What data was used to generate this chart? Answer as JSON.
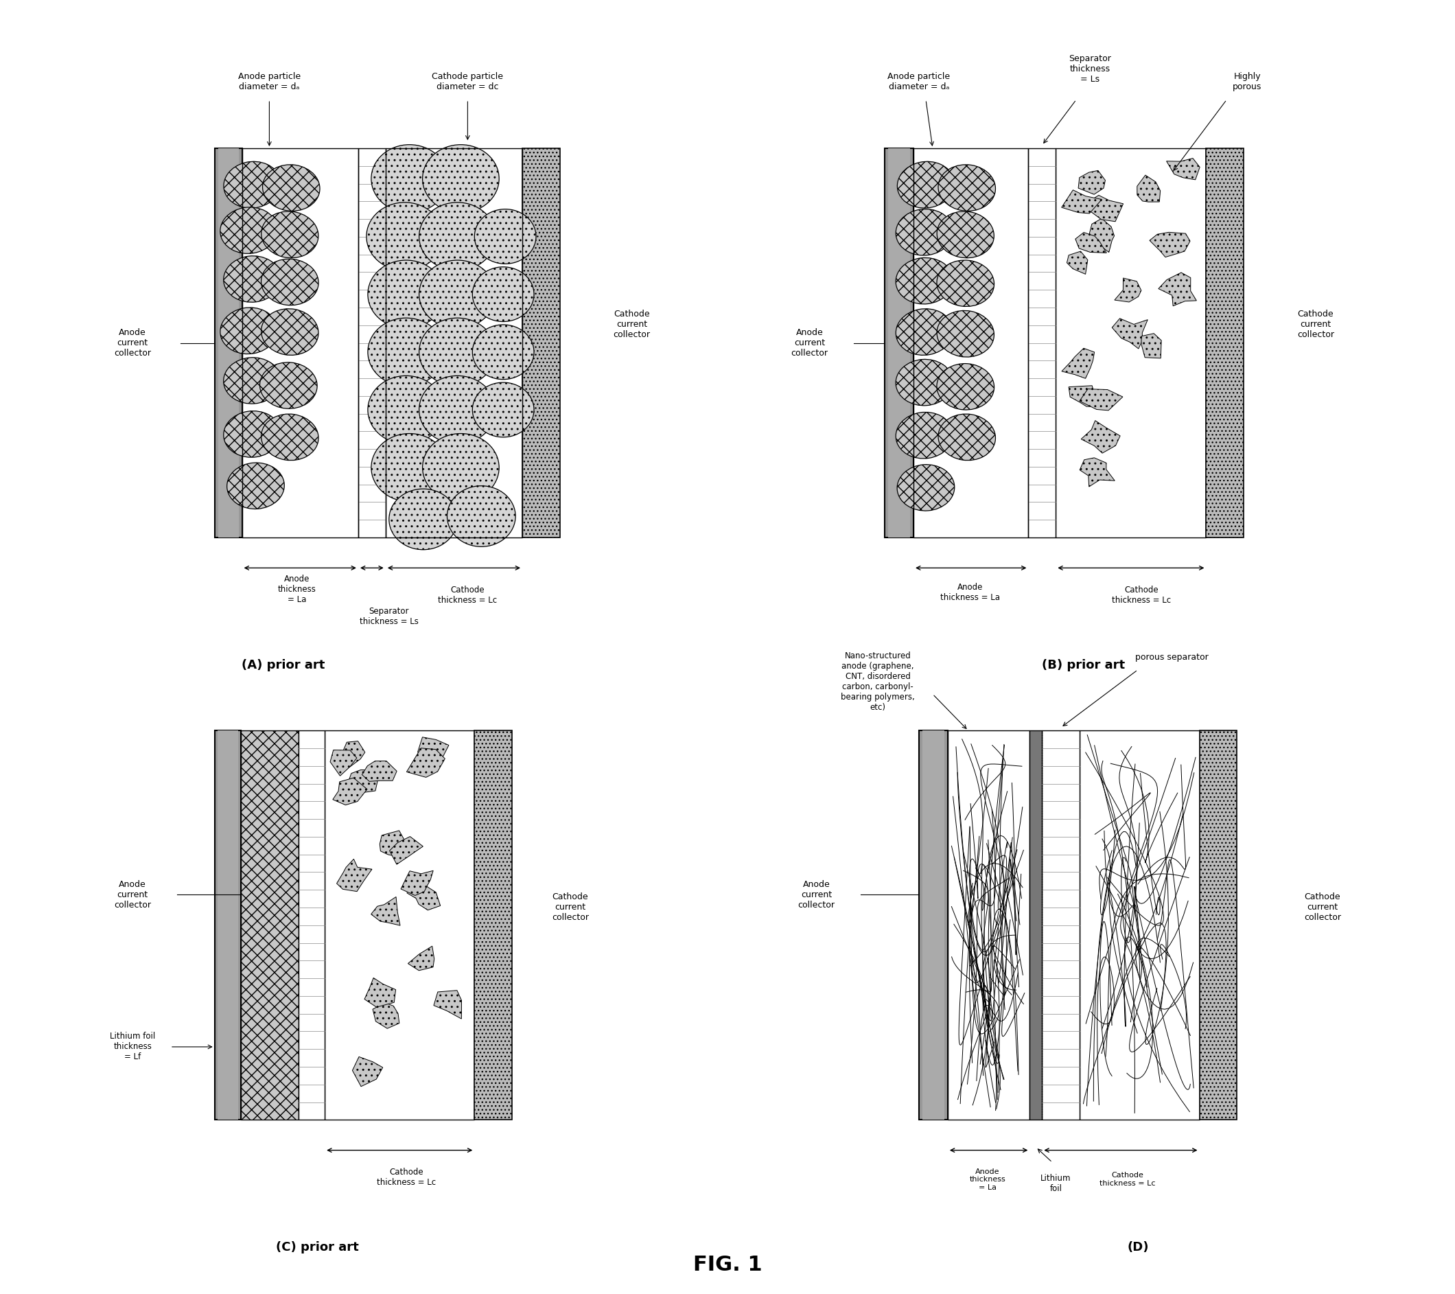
{
  "title": "FIG. 1",
  "background_color": "#ffffff",
  "figsize": [
    21.2,
    18.85
  ],
  "panel_labels": [
    "(A) prior art",
    "(B) prior art",
    "(C) prior art",
    "(D)"
  ]
}
